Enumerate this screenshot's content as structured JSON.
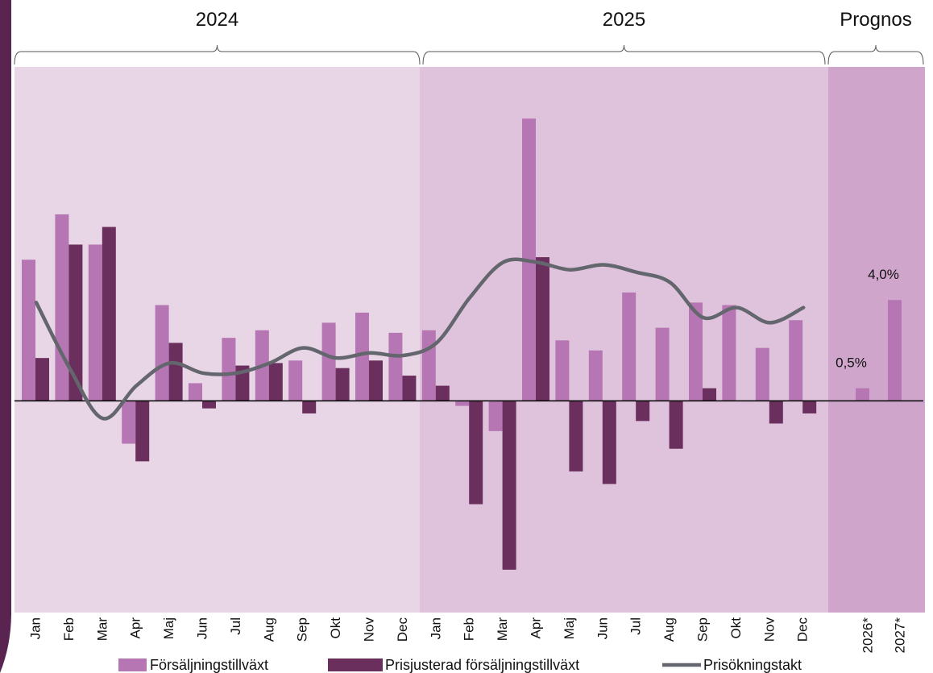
{
  "chart_data": {
    "type": "bar",
    "sections": [
      "2024",
      "2025",
      "Prognos"
    ],
    "categories": [
      "Jan",
      "Feb",
      "Mar",
      "Apr",
      "Maj",
      "Jun",
      "Jul",
      "Aug",
      "Sep",
      "Okt",
      "Nov",
      "Dec",
      "Jan",
      "Feb",
      "Mar",
      "Apr",
      "Maj",
      "Jun",
      "Jul",
      "Aug",
      "Sep",
      "Okt",
      "Nov",
      "Dec",
      "2026*",
      "2027*"
    ],
    "series": [
      {
        "name": "Försäljningstillväxt",
        "color": "#b676b3",
        "type": "bar",
        "values": [
          5.6,
          7.4,
          6.2,
          -1.7,
          3.8,
          0.7,
          2.5,
          2.8,
          1.6,
          3.1,
          3.5,
          2.7,
          2.8,
          -0.2,
          -1.2,
          11.2,
          2.4,
          2.0,
          4.3,
          2.9,
          3.9,
          3.8,
          2.1,
          3.2,
          0.5,
          4.0
        ],
        "value_labels": [
          null,
          null,
          null,
          null,
          null,
          null,
          null,
          null,
          null,
          null,
          null,
          null,
          null,
          null,
          null,
          null,
          null,
          null,
          null,
          null,
          null,
          null,
          null,
          null,
          "0,5%",
          "4,0%"
        ]
      },
      {
        "name": "Prisjusterad försäljningstillväxt",
        "color": "#6b2f5e",
        "type": "bar",
        "values": [
          1.7,
          6.2,
          6.9,
          -2.4,
          2.3,
          -0.3,
          1.4,
          1.5,
          -0.5,
          1.3,
          1.6,
          1.0,
          0.6,
          -4.1,
          -6.7,
          5.7,
          -2.8,
          -3.3,
          -0.8,
          -1.9,
          0.5,
          0,
          -0.9,
          -0.5,
          null,
          null
        ]
      },
      {
        "name": "Prisökningstakt",
        "color": "#63666c",
        "type": "line",
        "values": [
          3.9,
          1.3,
          -0.7,
          0.6,
          1.5,
          1.1,
          1.1,
          1.5,
          2.1,
          1.7,
          1.9,
          1.8,
          2.3,
          4.1,
          5.5,
          5.5,
          5.2,
          5.4,
          5.1,
          4.7,
          3.3,
          3.7,
          3.1,
          3.7,
          null,
          null
        ]
      }
    ],
    "ylim": [
      -8.4,
      13.25
    ]
  }
}
